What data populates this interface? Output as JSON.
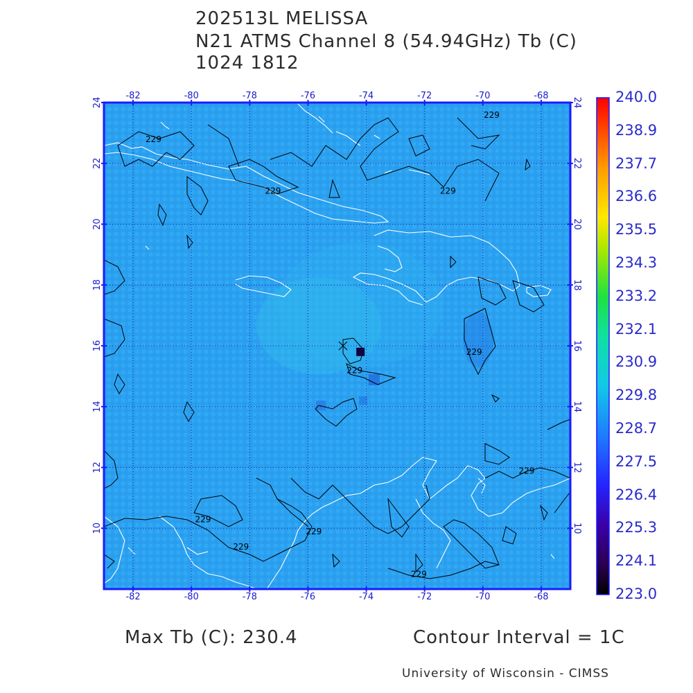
{
  "title": {
    "line1": "202513L MELISSA",
    "line2": "N21 ATMS Channel 8 (54.94GHz) Tb (C)",
    "line3": "1024 1812"
  },
  "map": {
    "lon_labels": [
      "-82",
      "-80",
      "-78",
      "-76",
      "-74",
      "-72",
      "-70",
      "-68"
    ],
    "lon_values": [
      -82,
      -80,
      -78,
      -76,
      -74,
      -72,
      -70,
      -68
    ],
    "lat_labels": [
      "24",
      "22",
      "20",
      "18",
      "16",
      "14",
      "12",
      "10"
    ],
    "lat_values": [
      24,
      22,
      20,
      18,
      16,
      14,
      12,
      10
    ],
    "lon_range": [
      -83.0,
      -67.0
    ],
    "lat_range": [
      8.0,
      24.0
    ],
    "grid": true,
    "contour_labels": [
      {
        "text": "229",
        "lon": -81.3,
        "lat": 22.7
      },
      {
        "text": "229",
        "lon": -69.7,
        "lat": 23.5
      },
      {
        "text": "229",
        "lon": -77.2,
        "lat": 21.0
      },
      {
        "text": "229",
        "lon": -71.2,
        "lat": 21.0
      },
      {
        "text": "229",
        "lon": -74.4,
        "lat": 15.1
      },
      {
        "text": "229",
        "lon": -70.3,
        "lat": 15.7
      },
      {
        "text": "229",
        "lon": -68.5,
        "lat": 11.8
      },
      {
        "text": "229",
        "lon": -79.6,
        "lat": 10.2
      },
      {
        "text": "229",
        "lon": -75.8,
        "lat": 9.8
      },
      {
        "text": "229",
        "lon": -78.3,
        "lat": 9.3
      },
      {
        "text": "229",
        "lon": -72.2,
        "lat": 8.4
      }
    ],
    "storm_center": {
      "lon": -74.8,
      "lat": 16.0
    },
    "cold_core": {
      "lon": -74.2,
      "lat": 15.8
    }
  },
  "colorbar": {
    "labels": [
      "240.0",
      "238.9",
      "237.7",
      "236.6",
      "235.5",
      "234.3",
      "233.2",
      "232.1",
      "230.9",
      "229.8",
      "228.7",
      "227.5",
      "226.4",
      "225.3",
      "224.1",
      "223.0"
    ],
    "min": 223.0,
    "max": 240.0
  },
  "footer": {
    "max_tb": "Max Tb (C): 230.4",
    "contour_interval": "Contour Interval = 1C",
    "credit": "University of Wisconsin - CIMSS"
  },
  "colors": {
    "frame": "#1a1aff",
    "field": "#2a9ff5",
    "coast": "#ffffff",
    "contour": "#000000",
    "label": "#2a2acc"
  }
}
